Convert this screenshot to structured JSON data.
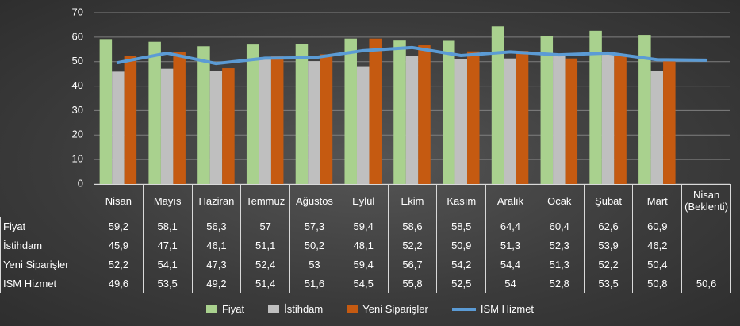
{
  "chart_data": {
    "type": "bar",
    "categories": [
      "Nisan",
      "Mayıs",
      "Haziran",
      "Temmuz",
      "Ağustos",
      "Eylül",
      "Ekim",
      "Kasım",
      "Aralık",
      "Ocak",
      "Şubat",
      "Mart",
      "Nisan (Beklenti)"
    ],
    "series": [
      {
        "name": "Fiyat",
        "type": "bar",
        "color": "#a9d18e",
        "values": [
          59.2,
          58.1,
          56.3,
          57,
          57.3,
          59.4,
          58.6,
          58.5,
          64.4,
          60.4,
          62.6,
          60.9,
          null
        ],
        "value_labels": [
          "59,2",
          "58,1",
          "56,3",
          "57",
          "57,3",
          "59,4",
          "58,6",
          "58,5",
          "64,4",
          "60,4",
          "62,6",
          "60,9",
          null
        ]
      },
      {
        "name": "İstihdam",
        "type": "bar",
        "color": "#bfbfbf",
        "values": [
          45.9,
          47.1,
          46.1,
          51.1,
          50.2,
          48.1,
          52.2,
          50.9,
          51.3,
          52.3,
          53.9,
          46.2,
          null
        ],
        "value_labels": [
          "45,9",
          "47,1",
          "46,1",
          "51,1",
          "50,2",
          "48,1",
          "52,2",
          "50,9",
          "51,3",
          "52,3",
          "53,9",
          "46,2",
          null
        ]
      },
      {
        "name": "Yeni Siparişler",
        "type": "bar",
        "color": "#c55a11",
        "values": [
          52.2,
          54.1,
          47.3,
          52.4,
          53,
          59.4,
          56.7,
          54.2,
          54.4,
          51.3,
          52.2,
          50.4,
          null
        ],
        "value_labels": [
          "52,2",
          "54,1",
          "47,3",
          "52,4",
          "53",
          "59,4",
          "56,7",
          "54,2",
          "54,4",
          "51,3",
          "52,2",
          "50,4",
          null
        ]
      },
      {
        "name": "ISM Hizmet",
        "type": "line",
        "color": "#5b9bd5",
        "values": [
          49.6,
          53.5,
          49.2,
          51.4,
          51.6,
          54.5,
          55.8,
          52.5,
          54,
          52.8,
          53.5,
          50.8,
          50.6
        ],
        "value_labels": [
          "49,6",
          "53,5",
          "49,2",
          "51,4",
          "51,6",
          "54,5",
          "55,8",
          "52,5",
          "54",
          "52,8",
          "53,5",
          "50,8",
          "50,6"
        ]
      }
    ],
    "ylim": [
      0,
      70
    ],
    "yticks": [
      0,
      10,
      20,
      30,
      40,
      50,
      60,
      70
    ],
    "grid": true,
    "legend": "bottom"
  }
}
